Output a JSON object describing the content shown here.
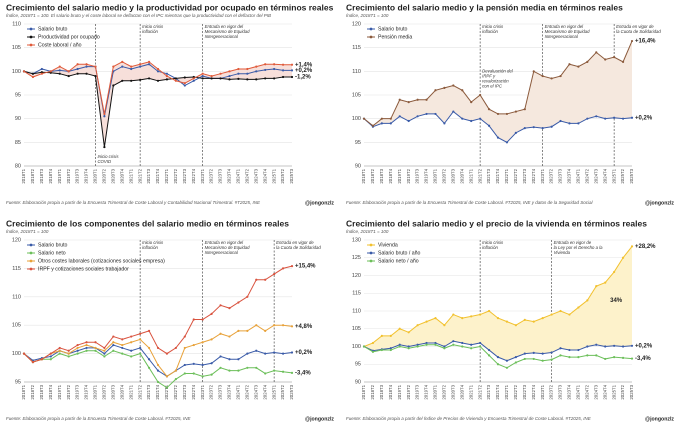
{
  "chart_data": [
    {
      "type": "line",
      "title": "Crecimiento del salario medio y la productividad por ocupado en términos reales",
      "subtitle": "Índice, 2018T1 = 100. El salario bruto y el coste laboral se deflactan con el IPC mientras que la productividad con el deflactor del PIB",
      "source": "Fuente: Elaboración propia a partir de la Encuesta Trimestral de Coste Laboral y Contabilidad Nacional Trimestral. #T2025, INE",
      "handle": "@jongonzlz",
      "categories": [
        "2018T1",
        "2018T2",
        "2018T3",
        "2018T4",
        "2019T1",
        "2019T2",
        "2019T3",
        "2019T4",
        "2020T1",
        "2020T2",
        "2020T3",
        "2020T4",
        "2021T1",
        "2021T2",
        "2021T3",
        "2021T4",
        "2022T1",
        "2022T2",
        "2022T3",
        "2022T4",
        "2023T1",
        "2023T2",
        "2023T3",
        "2023T4",
        "2024T1",
        "2024T2",
        "2024T3",
        "2024T4",
        "2025T1",
        "2025T2",
        "2025T3"
      ],
      "ylim": [
        80,
        110
      ],
      "yticks": [
        80,
        85,
        90,
        95,
        100,
        105,
        110
      ],
      "grid": true,
      "legend": "upper left",
      "fill_between": [
        2,
        1
      ],
      "fill_color": "#f7dfda",
      "series": [
        {
          "name": "Salario bruto",
          "color": "#3a5ba8",
          "end_label": "+0,2%",
          "values": [
            100,
            99.5,
            100.5,
            100,
            100.2,
            100,
            100.5,
            101,
            101,
            90.5,
            100,
            101,
            100.5,
            101,
            101.5,
            100,
            99.5,
            98.5,
            97,
            98,
            99,
            98.5,
            98.5,
            99,
            99.5,
            99.5,
            100,
            100.3,
            100.5,
            100.2,
            100.2
          ]
        },
        {
          "name": "Productividad por ocupado",
          "color": "#111111",
          "end_label": "-1,2%",
          "values": [
            100,
            99.5,
            99.8,
            99.7,
            99.5,
            99,
            99.5,
            99.5,
            99,
            84,
            97,
            98,
            98,
            98.2,
            98.5,
            98,
            98.3,
            98.5,
            98.7,
            98.8,
            98.5,
            98.5,
            98.5,
            98.3,
            98.4,
            98.3,
            98.3,
            98.5,
            98.5,
            98.8,
            98.8
          ]
        },
        {
          "name": "Coste laboral / año",
          "color": "#e05a3a",
          "end_label": "+1,4%",
          "values": [
            100,
            98.8,
            99.5,
            100,
            101,
            100,
            101.5,
            101.5,
            101,
            91,
            101,
            102,
            101,
            101.5,
            102,
            100.5,
            99,
            98,
            97.5,
            98.5,
            99.5,
            99,
            99.5,
            100,
            100.5,
            100.5,
            101,
            101.5,
            101.5,
            101.4,
            101.4
          ]
        }
      ],
      "annotations": [
        {
          "x": "2020T1",
          "position": "bottom",
          "lines": [
            "Inicio crisis",
            "COVID"
          ]
        },
        {
          "x": "2021T2",
          "position": "top",
          "lines": [
            "Inicio crisis",
            "inflación"
          ]
        },
        {
          "x": "2023T1",
          "position": "top",
          "lines": [
            "Entrada en vigor del",
            "Mecanismo de Equidad",
            "Intergeneracional"
          ]
        }
      ]
    },
    {
      "type": "line",
      "title": "Crecimiento del salario medio y la pensión media en términos reales",
      "subtitle": "Índice, 2018T1 = 100",
      "source": "Fuente: Elaboración propia a partir de la Encuesta Trimestral de Coste Laboral. #T2025, INE y datos de la Seguridad Social",
      "handle": "@jongonzlz",
      "categories": [
        "2018T1",
        "2018T2",
        "2018T3",
        "2018T4",
        "2019T1",
        "2019T2",
        "2019T3",
        "2019T4",
        "2020T1",
        "2020T2",
        "2020T3",
        "2020T4",
        "2021T1",
        "2021T2",
        "2021T3",
        "2021T4",
        "2022T1",
        "2022T2",
        "2022T3",
        "2022T4",
        "2023T1",
        "2023T2",
        "2023T3",
        "2023T4",
        "2024T1",
        "2024T2",
        "2024T3",
        "2024T4",
        "2025T1",
        "2025T2",
        "2025T3"
      ],
      "ylim": [
        90,
        120
      ],
      "yticks": [
        90,
        95,
        100,
        105,
        110,
        115,
        120
      ],
      "grid": true,
      "legend": "upper left",
      "fill_between": [
        1,
        0
      ],
      "fill_color": "#f5e8de",
      "series": [
        {
          "name": "Salario bruto",
          "color": "#3a5ba8",
          "end_label": "+0,2%",
          "values": [
            100,
            98.3,
            99,
            99,
            100.5,
            99.5,
            100.5,
            101,
            101,
            99,
            101.5,
            100,
            99.5,
            100,
            98.5,
            96,
            95,
            97,
            98,
            98.2,
            98,
            98.3,
            99.5,
            99,
            99,
            100,
            100.5,
            100,
            100.2,
            100,
            100.2
          ]
        },
        {
          "name": "Pensión media",
          "color": "#8b5a3c",
          "end_label": "+16,4%",
          "values": [
            100,
            98.5,
            100,
            100,
            104,
            103.5,
            104,
            104,
            106,
            106.5,
            107,
            106,
            103.5,
            105,
            102,
            101,
            101,
            101.5,
            102,
            110,
            109,
            108.5,
            109,
            111.5,
            111,
            112,
            114,
            112.5,
            113,
            112,
            116.4
          ]
        }
      ],
      "annotations": [
        {
          "x": "2021T2",
          "position": "top",
          "lines": [
            "Inicio crisis",
            "inflación"
          ]
        },
        {
          "x": "2023T1",
          "position": "top",
          "lines": [
            "Entrada en vigor del",
            "Mecanismo de Equidad",
            "Intergeneracional"
          ]
        },
        {
          "x": "2025T1",
          "position": "top",
          "lines": [
            "Entrada en vigor de",
            "la Cuota de Solidaridad"
          ]
        }
      ],
      "notes": [
        {
          "x": "2021T2",
          "y": 110,
          "color": "#333333",
          "lines": [
            "Devaluación del",
            "IRPF y",
            "revalorización",
            "con el IPC"
          ]
        }
      ]
    },
    {
      "type": "line",
      "title": "Crecimiento de los componentes del salario medio en términos reales",
      "subtitle": "Índice, 2018T1 = 100",
      "source": "Fuente: Elaboración propia a partir de la Encuesta Trimestral de Coste Laboral. #T2025, INE",
      "handle": "@jongonzlz",
      "categories": [
        "2018T1",
        "2018T2",
        "2018T3",
        "2018T4",
        "2019T1",
        "2019T2",
        "2019T3",
        "2019T4",
        "2020T1",
        "2020T2",
        "2020T3",
        "2020T4",
        "2021T1",
        "2021T2",
        "2021T3",
        "2021T4",
        "2022T1",
        "2022T2",
        "2022T3",
        "2022T4",
        "2023T1",
        "2023T2",
        "2023T3",
        "2023T4",
        "2024T1",
        "2024T2",
        "2024T3",
        "2024T4",
        "2025T1",
        "2025T2",
        "2025T3"
      ],
      "ylim": [
        95,
        120
      ],
      "yticks": [
        95,
        100,
        105,
        110,
        115,
        120
      ],
      "grid": true,
      "legend": "upper left",
      "series": [
        {
          "name": "Salario bruto",
          "color": "#3a5ba8",
          "end_label": "+0,2%",
          "values": [
            100,
            98.8,
            99.2,
            99.5,
            100.5,
            100,
            100.5,
            101,
            101,
            100,
            101.5,
            101,
            100.5,
            101,
            99,
            97,
            96,
            97,
            98,
            98.2,
            98,
            98.3,
            99.5,
            99,
            99,
            100,
            100.5,
            100,
            100.2,
            100,
            100.2
          ]
        },
        {
          "name": "Salario neto",
          "color": "#6cbf5a",
          "end_label": "-3,4%",
          "values": [
            100,
            98.5,
            99,
            99,
            100,
            99.5,
            100,
            100.5,
            100.5,
            99.5,
            100.5,
            100,
            99.5,
            100,
            97.5,
            95,
            94,
            95.5,
            96.5,
            96.5,
            96,
            96.3,
            97.5,
            97,
            97,
            97.5,
            97.5,
            96.5,
            97,
            96.8,
            96.6
          ]
        },
        {
          "name": "Otros costes laborales (cotizaciones sociales empresa)",
          "color": "#e8a23a",
          "end_label": "+4,8%",
          "values": [
            100,
            98.5,
            99,
            100,
            100.5,
            100,
            101,
            101.5,
            101,
            100.5,
            102,
            101.5,
            102,
            102.5,
            101,
            98,
            96,
            97,
            101,
            101.5,
            102,
            102.5,
            103.5,
            103,
            104,
            104,
            105,
            104,
            105,
            105,
            104.8
          ]
        },
        {
          "name": "IRPF y cotizaciones sociales trabajador",
          "color": "#d9533f",
          "end_label": "+15,4%",
          "values": [
            100,
            98.5,
            99,
            100,
            101,
            100.5,
            101.5,
            102,
            102,
            101,
            103,
            102.5,
            103,
            103.5,
            104,
            101,
            100,
            101,
            103,
            106,
            106,
            107,
            108.5,
            108,
            109,
            110,
            113,
            113,
            114,
            115,
            115.4
          ]
        }
      ],
      "annotations": [
        {
          "x": "2021T2",
          "position": "top",
          "lines": [
            "Inicio crisis",
            "inflación"
          ]
        },
        {
          "x": "2023T1",
          "position": "top",
          "lines": [
            "Entrada en vigor del",
            "Mecanismo de Equidad",
            "Intergeneracional"
          ]
        },
        {
          "x": "2025T1",
          "position": "top",
          "lines": [
            "Entrada en vigor de",
            "la Cuota de Solidaridad"
          ]
        }
      ]
    },
    {
      "type": "line",
      "title": "Crecimiento del salario medio y el precio de la vivienda en términos reales",
      "subtitle": "Índice, 2018T1 = 100",
      "source": "Fuente: Elaboración propia a partir del Índice de Precios de Vivienda y Encuesta Trimestral de Coste Laboral. #T2025, INE",
      "handle": "@jongonzlz",
      "categories": [
        "2018T1",
        "2018T2",
        "2018T3",
        "2018T4",
        "2019T1",
        "2019T2",
        "2019T3",
        "2019T4",
        "2020T1",
        "2020T2",
        "2020T3",
        "2020T4",
        "2021T1",
        "2021T2",
        "2021T3",
        "2021T4",
        "2022T1",
        "2022T2",
        "2022T3",
        "2022T4",
        "2023T1",
        "2023T2",
        "2023T3",
        "2023T4",
        "2024T1",
        "2024T2",
        "2024T3",
        "2024T4",
        "2025T1",
        "2025T2",
        "2025T3"
      ],
      "ylim": [
        90,
        130
      ],
      "yticks": [
        90,
        95,
        100,
        105,
        110,
        115,
        120,
        125,
        130
      ],
      "grid": true,
      "legend": "upper left",
      "fill_between": [
        0,
        1
      ],
      "fill_color": "#fdf2cb",
      "series": [
        {
          "name": "Vivienda",
          "color": "#f2c12e",
          "end_label": "+28,2%",
          "values": [
            100,
            101,
            103,
            103,
            105,
            104,
            106,
            107,
            108,
            106,
            109,
            108,
            108.5,
            109,
            110,
            108,
            107,
            106,
            107.5,
            107,
            108,
            109,
            110,
            109,
            111,
            113,
            117,
            118,
            121,
            125,
            128.2
          ]
        },
        {
          "name": "Salario bruto / año",
          "color": "#3a5ba8",
          "end_label": "+0,2%",
          "values": [
            100,
            98.8,
            99.2,
            99.5,
            100.5,
            100,
            100.5,
            101,
            101,
            100,
            101.5,
            101,
            100.5,
            101,
            99,
            97,
            96,
            97,
            98,
            98.2,
            98,
            98.3,
            99.5,
            99,
            99,
            100,
            100.5,
            100,
            100.2,
            100,
            100.2
          ]
        },
        {
          "name": "Salario neto / año",
          "color": "#6cbf5a",
          "end_label": "-3,4%",
          "values": [
            100,
            98.5,
            99,
            99,
            100,
            99.5,
            100,
            100.5,
            100.5,
            99.5,
            100.5,
            100,
            99.5,
            100,
            97.5,
            95,
            94,
            95.5,
            96.5,
            96.5,
            96,
            96.3,
            97.5,
            97,
            97,
            97.5,
            97.5,
            96.5,
            97,
            96.8,
            96.6
          ]
        }
      ],
      "annotations": [
        {
          "x": "2021T2",
          "position": "top",
          "lines": [
            "Inicio crisis",
            "inflación"
          ]
        },
        {
          "x": "2023T2",
          "position": "top",
          "lines": [
            "Entrada en vigor de",
            "la Ley por el Derecho a la",
            "Vivienda"
          ]
        }
      ],
      "notes": [
        {
          "x": "2025T1",
          "y": 113,
          "color": "#d4a017",
          "lines": [
            "34%"
          ]
        }
      ]
    }
  ]
}
